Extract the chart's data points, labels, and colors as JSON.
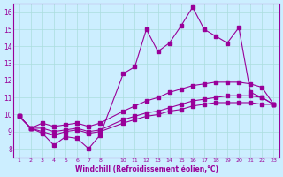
{
  "title": "",
  "xlabel": "Windchill (Refroidissement éolien,°C)",
  "ylabel": "",
  "background_color": "#cceeff",
  "grid_color": "#aadddd",
  "line_color": "#990099",
  "x_ticks": [
    1,
    2,
    3,
    4,
    5,
    6,
    7,
    8,
    10,
    11,
    12,
    13,
    14,
    15,
    16,
    17,
    18,
    19,
    20,
    21,
    22,
    23
  ],
  "ylim": [
    7.5,
    16.5
  ],
  "xlim": [
    0.5,
    23.5
  ],
  "series": {
    "line1_x": [
      1,
      2,
      3,
      4,
      5,
      6,
      7,
      8,
      10,
      11,
      12,
      13,
      14,
      15,
      16,
      17,
      18,
      19,
      20,
      21,
      22,
      23
    ],
    "line1_y": [
      9.9,
      9.2,
      8.9,
      8.2,
      8.7,
      8.6,
      8.0,
      8.8,
      12.4,
      12.8,
      15.0,
      13.7,
      14.2,
      15.2,
      16.3,
      15.0,
      14.6,
      14.2,
      15.1,
      11.3,
      11.0,
      10.6
    ],
    "line2_x": [
      1,
      2,
      3,
      4,
      5,
      6,
      7,
      8,
      10,
      11,
      12,
      13,
      14,
      15,
      16,
      17,
      18,
      19,
      20,
      21,
      22,
      23
    ],
    "line2_y": [
      9.9,
      9.2,
      9.5,
      9.3,
      9.4,
      9.5,
      9.3,
      9.5,
      10.2,
      10.5,
      10.8,
      11.0,
      11.3,
      11.5,
      11.7,
      11.8,
      11.9,
      11.9,
      11.9,
      11.8,
      11.6,
      10.6
    ],
    "line3_x": [
      1,
      2,
      3,
      4,
      5,
      6,
      7,
      8,
      10,
      11,
      12,
      13,
      14,
      15,
      16,
      17,
      18,
      19,
      20,
      21,
      22,
      23
    ],
    "line3_y": [
      9.9,
      9.2,
      9.2,
      9.0,
      9.1,
      9.2,
      9.0,
      9.1,
      9.7,
      9.9,
      10.1,
      10.2,
      10.4,
      10.6,
      10.8,
      10.9,
      11.0,
      11.1,
      11.1,
      11.1,
      11.0,
      10.6
    ],
    "line4_x": [
      1,
      2,
      3,
      4,
      5,
      6,
      7,
      8,
      10,
      11,
      12,
      13,
      14,
      15,
      16,
      17,
      18,
      19,
      20,
      21,
      22,
      23
    ],
    "line4_y": [
      9.9,
      9.2,
      9.0,
      8.8,
      9.0,
      9.1,
      8.9,
      9.0,
      9.5,
      9.7,
      9.9,
      10.0,
      10.2,
      10.3,
      10.5,
      10.6,
      10.7,
      10.7,
      10.7,
      10.7,
      10.6,
      10.6
    ]
  }
}
